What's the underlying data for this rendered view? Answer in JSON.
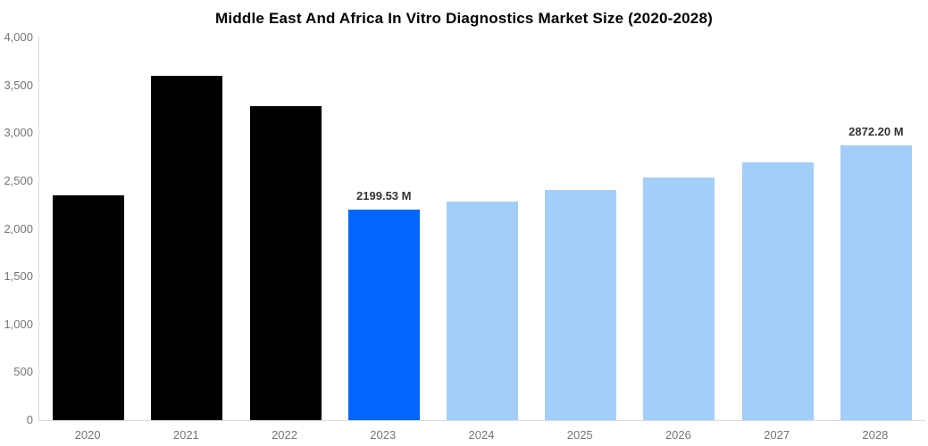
{
  "title": "Middle East And Africa In Vitro Diagnostics Market Size (2020-2028)",
  "chart_data": {
    "type": "bar",
    "title": "Middle East And Africa In Vitro Diagnostics Market Size (2020-2028)",
    "categories": [
      "2020",
      "2021",
      "2022",
      "2023",
      "2024",
      "2025",
      "2026",
      "2027",
      "2028"
    ],
    "values": [
      2348,
      3597,
      3283,
      2199.53,
      2285,
      2406,
      2539,
      2694,
      2872.2
    ],
    "data_labels": [
      "",
      "",
      "",
      "2199.53 M",
      "",
      "",
      "",
      "",
      "2872.20 M"
    ],
    "bar_colors": [
      "#000000",
      "#000000",
      "#000000",
      "#0066ff",
      "#a3cefa",
      "#a3cefa",
      "#a3cefa",
      "#a3cefa",
      "#a3cefa"
    ],
    "unit": "M",
    "xlabel": "",
    "ylabel": "",
    "ylim": [
      0,
      4000
    ],
    "ytick_step": 500,
    "yticks": [
      "4,000",
      "3,500",
      "3,000",
      "2,500",
      "2,000",
      "1,500",
      "1,000",
      "500",
      "0"
    ],
    "grid": false,
    "legend": false,
    "axis_line_color": "#d9d9d9",
    "tick_label_color": "#757575",
    "data_label_color": "#333333",
    "highlight_color": "#0066ff",
    "forecast_color": "#a3cefa",
    "historical_color": "#000000"
  }
}
